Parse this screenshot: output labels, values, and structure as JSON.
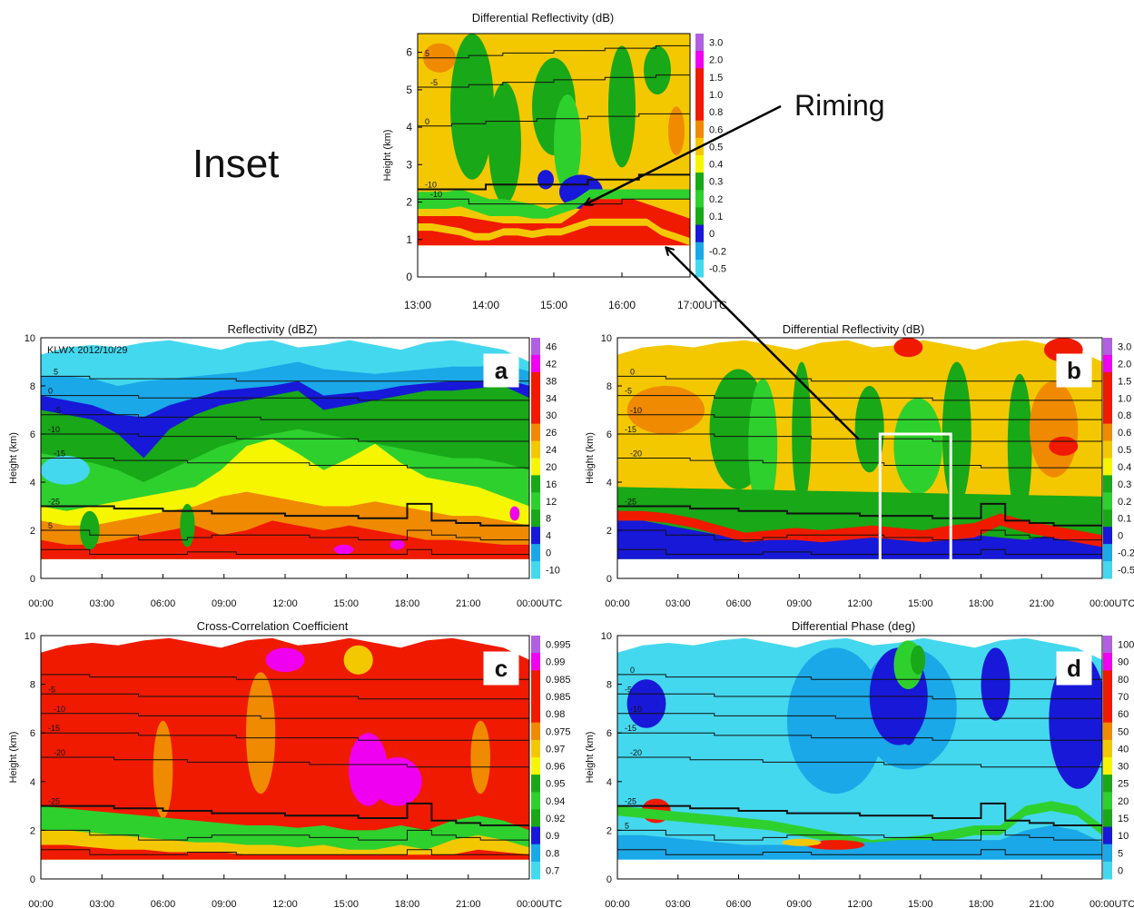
{
  "figure": {
    "inset_label": "Inset",
    "riming_label": "Riming",
    "colors": {
      "cyan": "#44d8ee",
      "ltblue": "#1aa8e8",
      "blue": "#1818d8",
      "green": "#18a818",
      "ltgreen": "#2ed02e",
      "yellow": "#f6f600",
      "gold": "#f4c800",
      "orange": "#f08a00",
      "red": "#f01a00",
      "magenta": "#f000f0",
      "violet": "#b060e0"
    }
  },
  "chart_data": [
    {
      "id": "inset",
      "type": "heatmap",
      "title": "Differential Reflectivity (dB)",
      "ylabel": "Height (km)",
      "ylim": [
        0,
        6.5
      ],
      "yticks": [
        "0",
        "1",
        "2",
        "3",
        "4",
        "5",
        "6"
      ],
      "xticks": [
        "13:00",
        "14:00",
        "15:00",
        "16:00",
        "17:00UTC"
      ],
      "colorbar": [
        "3.0",
        "2.0",
        "1.5",
        "1.0",
        "0.8",
        "0.6",
        "0.5",
        "0.4",
        "0.3",
        "0.2",
        "0.1",
        "0",
        "-0.2",
        "-0.5"
      ],
      "contour_labels": [
        "-10",
        "-10",
        "0",
        "-5",
        "5"
      ]
    },
    {
      "id": "a",
      "type": "heatmap",
      "panel_letter": "a",
      "title": "Reflectivity (dBZ)",
      "annotation": "KLWX 2012/10/29",
      "ylabel": "Height (km)",
      "ylim": [
        0,
        10
      ],
      "yticks": [
        "0",
        "2",
        "4",
        "6",
        "8",
        "10"
      ],
      "xticks": [
        "00:00",
        "03:00",
        "06:00",
        "09:00",
        "12:00",
        "15:00",
        "18:00",
        "21:00",
        "00:00UTC"
      ],
      "colorbar": [
        "46",
        "42",
        "38",
        "34",
        "30",
        "26",
        "24",
        "20",
        "16",
        "12",
        "8",
        "4",
        "0",
        "-10"
      ],
      "contour_labels": [
        "-25",
        "-15",
        "-10",
        "-5",
        "0",
        "5",
        "5"
      ]
    },
    {
      "id": "b",
      "type": "heatmap",
      "panel_letter": "b",
      "title": "Differential Reflectivity (dB)",
      "ylabel": "Height (km)",
      "ylim": [
        0,
        10
      ],
      "yticks": [
        "0",
        "2",
        "4",
        "6",
        "8",
        "10"
      ],
      "xticks": [
        "00:00",
        "03:00",
        "06:00",
        "09:00",
        "12:00",
        "15:00",
        "18:00",
        "21:00",
        "00:00UTC"
      ],
      "colorbar": [
        "3.0",
        "2.0",
        "1.5",
        "1.0",
        "0.8",
        "0.6",
        "0.5",
        "0.4",
        "0.3",
        "0.2",
        "0.1",
        "0",
        "-0.2",
        "-0.5"
      ],
      "contour_labels": [
        "-25",
        "-20",
        "-15",
        "-10",
        "-5",
        "0"
      ]
    },
    {
      "id": "c",
      "type": "heatmap",
      "panel_letter": "c",
      "title": "Cross-Correlation Coefficient",
      "ylabel": "Height (km)",
      "ylim": [
        0,
        10
      ],
      "yticks": [
        "0",
        "2",
        "4",
        "6",
        "8",
        "10"
      ],
      "xticks": [
        "00:00",
        "03:00",
        "06:00",
        "09:00",
        "12:00",
        "15:00",
        "18:00",
        "21:00",
        "00:00UTC"
      ],
      "colorbar": [
        "0.995",
        "0.99",
        "0.985",
        "0.985",
        "0.98",
        "0.975",
        "0.97",
        "0.96",
        "0.95",
        "0.94",
        "0.92",
        "0.9",
        "0.8",
        "0.7"
      ],
      "contour_labels": [
        "-25",
        "-20",
        "-15",
        "-10",
        "-5"
      ]
    },
    {
      "id": "d",
      "type": "heatmap",
      "panel_letter": "d",
      "title": "Differential Phase (deg)",
      "ylabel": "Height (km)",
      "ylim": [
        0,
        10
      ],
      "yticks": [
        "0",
        "2",
        "4",
        "6",
        "8",
        "10"
      ],
      "xticks": [
        "00:00",
        "03:00",
        "06:00",
        "09:00",
        "12:00",
        "15:00",
        "18:00",
        "21:00",
        "00:00UTC"
      ],
      "colorbar": [
        "100",
        "90",
        "80",
        "70",
        "60",
        "50",
        "40",
        "30",
        "25",
        "20",
        "15",
        "10",
        "5",
        "0"
      ],
      "contour_labels": [
        "-25",
        "-20",
        "-15",
        "-10",
        "-5",
        "0",
        "5"
      ]
    }
  ]
}
